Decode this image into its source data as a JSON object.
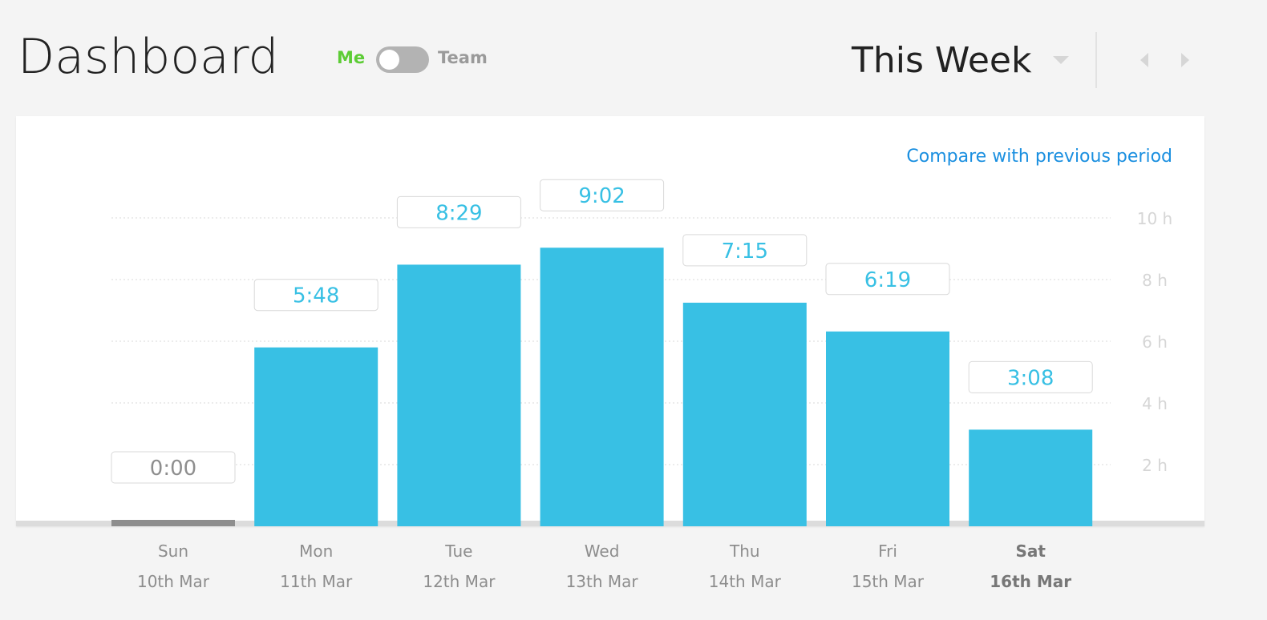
{
  "header": {
    "title": "Dashboard",
    "toggle_left": "Me",
    "toggle_right": "Team",
    "toggle_state": "Me",
    "period": "This Week"
  },
  "compare_link": "Compare with previous period",
  "colors": {
    "bar": "#38c0e4",
    "zero_bar": "#8e8e8e",
    "accent_me": "#5ccc35",
    "link": "#1a8fe0"
  },
  "chart_data": {
    "type": "bar",
    "categories": [
      "Sun",
      "Mon",
      "Tue",
      "Wed",
      "Thu",
      "Fri",
      "Sat"
    ],
    "dates": [
      "10th Mar",
      "11th Mar",
      "12th Mar",
      "13th Mar",
      "14th Mar",
      "15th Mar",
      "16th Mar"
    ],
    "values": [
      0,
      5.8,
      8.483,
      9.033,
      7.25,
      6.317,
      3.133
    ],
    "data_labels": [
      "0:00",
      "5:48",
      "8:29",
      "9:02",
      "7:15",
      "6:19",
      "3:08"
    ],
    "yticks": [
      "2 h",
      "4 h",
      "6 h",
      "8 h",
      "10 h"
    ],
    "ytick_values": [
      2,
      4,
      6,
      8,
      10
    ],
    "ylim": [
      0,
      10
    ],
    "grid": true,
    "highlighted_day": "Sat"
  }
}
